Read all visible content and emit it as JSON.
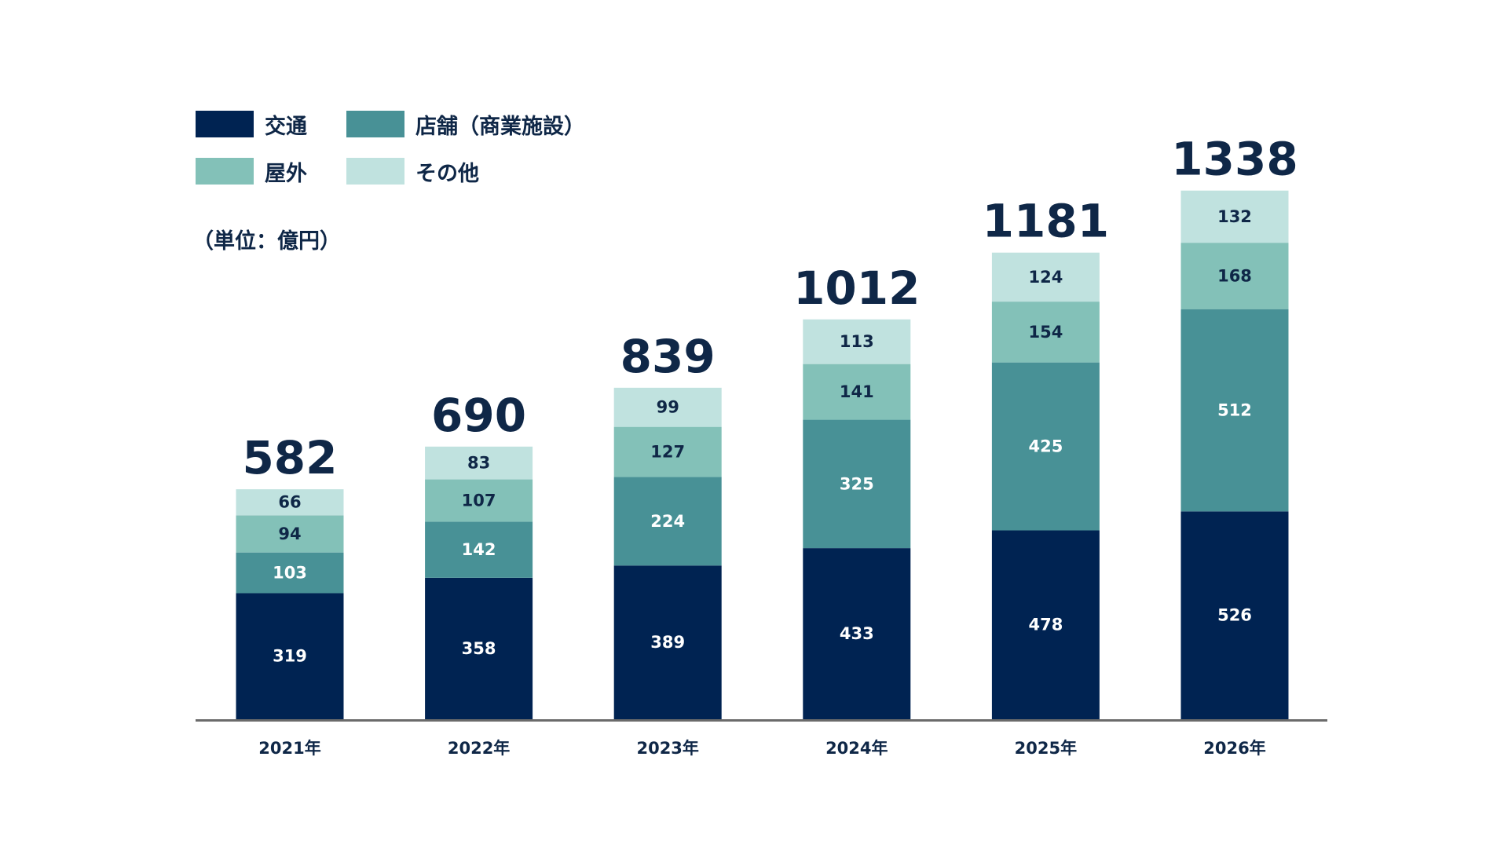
{
  "chart_data": {
    "type": "bar",
    "stacked": true,
    "categories": [
      "2021年",
      "2022年",
      "2023年",
      "2024年",
      "2025年",
      "2026年"
    ],
    "series": [
      {
        "name": "交通",
        "color": "#002352",
        "values": [
          319,
          358,
          389,
          433,
          478,
          526
        ]
      },
      {
        "name": "店舗（商業施設）",
        "color": "#489196",
        "values": [
          103,
          142,
          224,
          325,
          425,
          512
        ]
      },
      {
        "name": "屋外",
        "color": "#83c1b8",
        "values": [
          94,
          107,
          127,
          141,
          154,
          168
        ]
      },
      {
        "name": "その他",
        "color": "#c0e2df",
        "values": [
          66,
          83,
          99,
          113,
          124,
          132
        ]
      }
    ],
    "totals": [
      582,
      690,
      839,
      1012,
      1181,
      1338
    ],
    "unit_label": "（単位：億円）",
    "legend_position": "top-left",
    "grid": false
  }
}
